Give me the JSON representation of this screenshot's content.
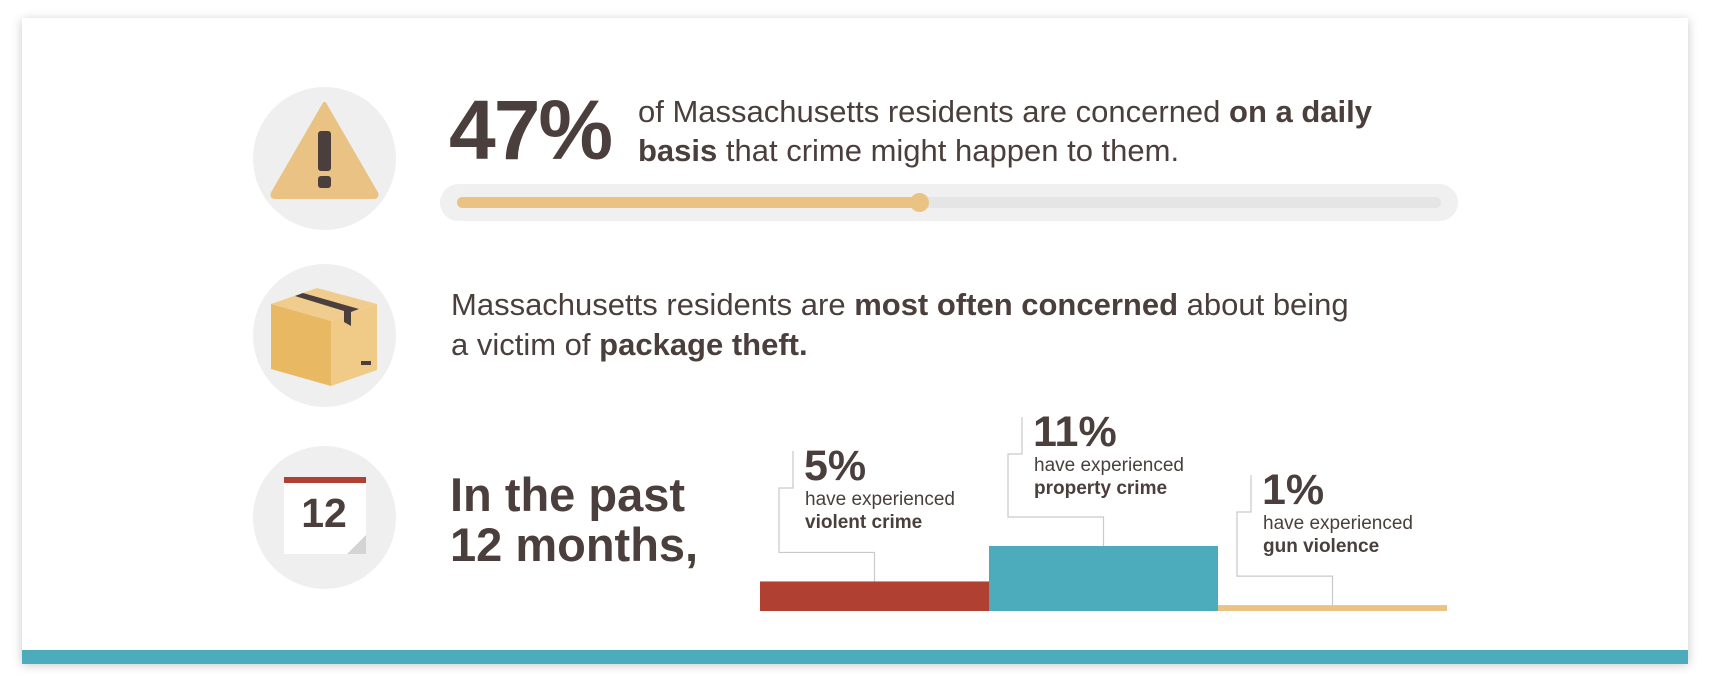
{
  "stat1": {
    "percent": "47%",
    "text_a": "of Massachusetts residents are concerned ",
    "text_bold": "on a daily basis",
    "text_b": " that crime might happen to them.",
    "progress": 0.47
  },
  "stat2": {
    "text_a": "Massachusetts residents are ",
    "text_bold1": "most often concerned",
    "text_b": " about being a victim of ",
    "text_bold2": "package theft."
  },
  "stat3": {
    "heading_line1": "In the past",
    "heading_line2": "12 months,",
    "calendar_day": "12"
  },
  "icons": {
    "warning": "warning-triangle-icon",
    "box": "package-box-icon",
    "calendar": "calendar-icon"
  },
  "colors": {
    "accent_yellow": "#eac283",
    "violent": "#b04032",
    "property": "#4cacbc",
    "gun": "#eac283",
    "text": "#4a3f3c",
    "footer_bar": "#4cacbc"
  },
  "chart_data": {
    "type": "bar",
    "categories": [
      "violent crime",
      "property crime",
      "gun violence"
    ],
    "values": [
      5,
      11,
      1
    ],
    "value_labels": [
      "5%",
      "11%",
      "1%"
    ],
    "prefix": "have experienced",
    "colors": [
      "#b04032",
      "#4cacbc",
      "#eac283"
    ],
    "title": "",
    "xlabel": "",
    "ylabel": "",
    "ylim": [
      0,
      11
    ],
    "grid": false
  }
}
